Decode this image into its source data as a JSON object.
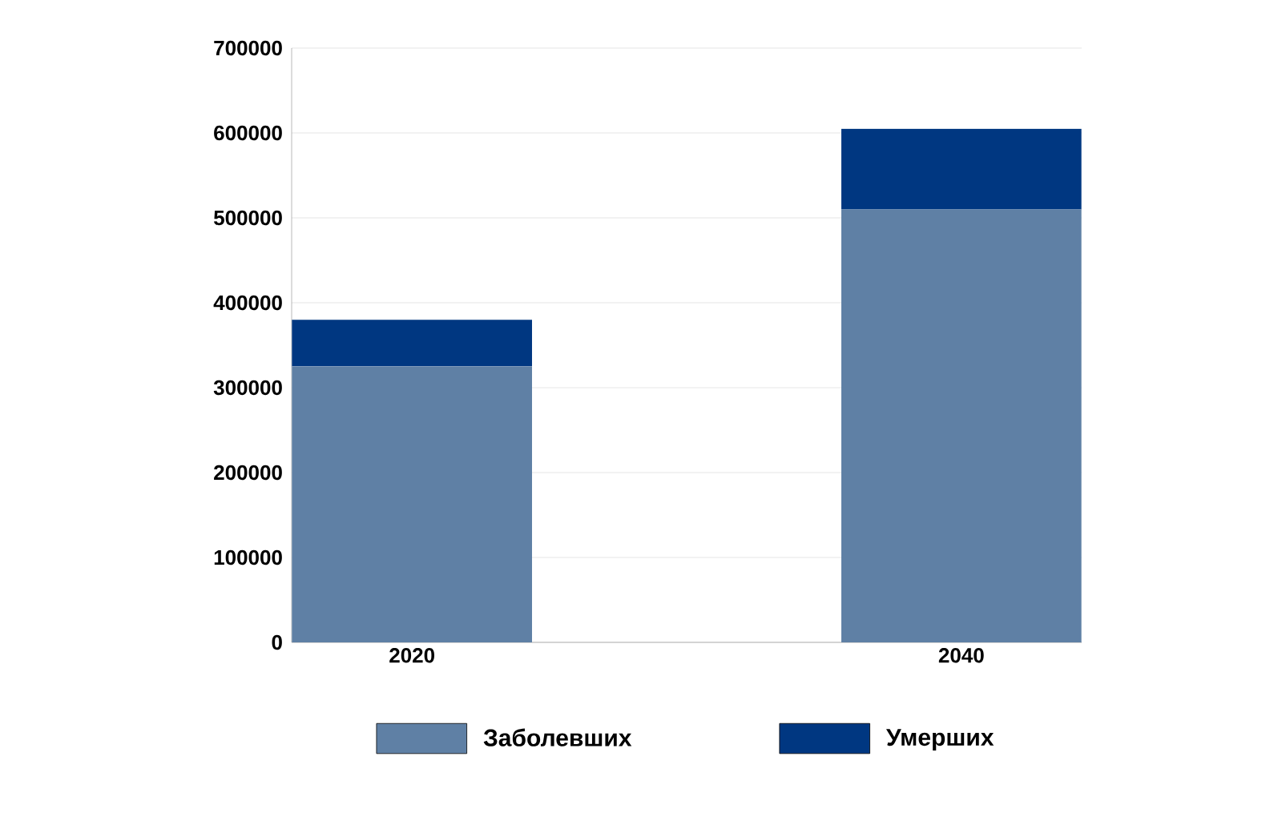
{
  "chart_data": {
    "type": "bar",
    "stacked": true,
    "categories": [
      "2020",
      "2040"
    ],
    "series": [
      {
        "name": "Заболевших",
        "color": "#5f80a5",
        "values": [
          325000,
          510000
        ]
      },
      {
        "name": "Умерших",
        "color": "#003781",
        "values": [
          55000,
          95000
        ]
      }
    ],
    "ylim": [
      0,
      700000
    ],
    "yticks": [
      0,
      100000,
      200000,
      300000,
      400000,
      500000,
      600000,
      700000
    ],
    "grid": "y",
    "legend": "bottom"
  }
}
